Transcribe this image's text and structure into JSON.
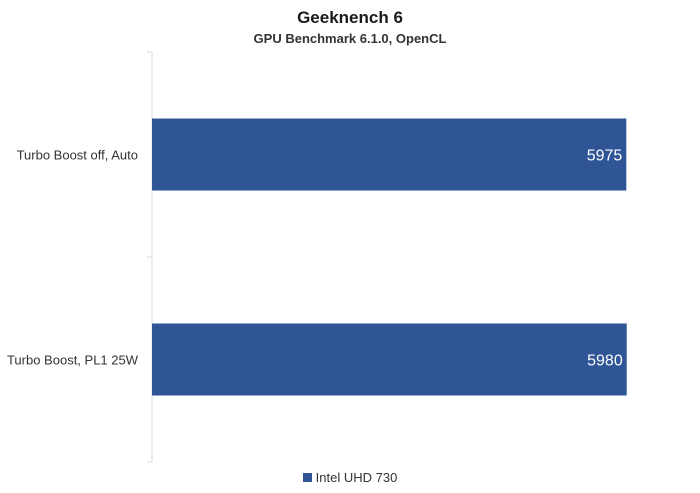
{
  "chart_data": {
    "type": "bar",
    "orientation": "horizontal",
    "title": "Geeknench 6",
    "subtitle": "GPU Benchmark 6.1.0, OpenCL",
    "categories": [
      "Turbo Boost off, Auto",
      "Turbo Boost, PL1 25W"
    ],
    "series": [
      {
        "name": "Intel UHD 730",
        "values": [
          5975,
          5980
        ],
        "color": "#2f5597"
      }
    ],
    "xlim": [
      0,
      6500
    ],
    "grid": false,
    "value_axis_labels": false,
    "data_labels": true,
    "legend_position": "bottom"
  }
}
